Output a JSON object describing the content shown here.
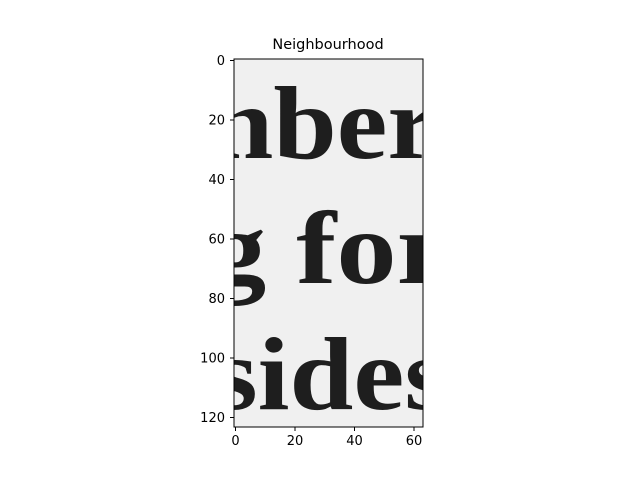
{
  "title": "Neighbourhood",
  "image": {
    "description_lines": [
      {
        "text": "nber"
      },
      {
        "text": "g for"
      },
      {
        "text": "sides"
      }
    ],
    "background_color": "#f0f0f0",
    "ink_color": "#1e1e1e"
  },
  "axes": {
    "x_range": [
      0,
      63
    ],
    "y_range": [
      0,
      123
    ],
    "x_ticks": [
      "0",
      "20",
      "40",
      "60"
    ],
    "y_ticks": [
      "0",
      "20",
      "40",
      "60",
      "80",
      "100",
      "120"
    ],
    "y_inverted": true
  }
}
